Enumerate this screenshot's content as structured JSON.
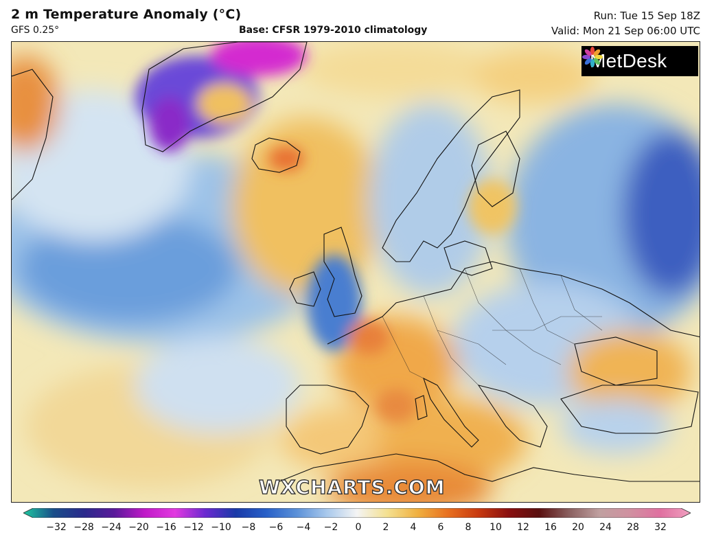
{
  "header": {
    "title": "2 m Temperature Anomaly (°C)",
    "model": "GFS 0.25°",
    "base": "Base: CFSR 1979-2010 climatology",
    "run": "Run: Tue 15 Sep 18Z",
    "valid": "Valid: Mon 21 Sep 06:00 UTC"
  },
  "logo": {
    "text": "MetDesk",
    "icon": "flower-logo-icon"
  },
  "watermark": "WXCHARTS.COM",
  "legend": {
    "ticks": [
      "−32",
      "−28",
      "−24",
      "−20",
      "−16",
      "−12",
      "−10",
      "−8",
      "−6",
      "−4",
      "−2",
      "0",
      "2",
      "4",
      "6",
      "8",
      "10",
      "12",
      "16",
      "20",
      "24",
      "28",
      "32"
    ],
    "colors": [
      "#1fc8a0",
      "#1a4e8a",
      "#2a2a8c",
      "#5a1a9a",
      "#c01ac8",
      "#e23ae0",
      "#6a2ad0",
      "#1a3aa8",
      "#2860c8",
      "#5a90d8",
      "#a8c8ec",
      "#f4f4f4",
      "#f4e090",
      "#f0b040",
      "#e87020",
      "#c83a10",
      "#8a1010",
      "#5a1010",
      "#8a6060",
      "#c0a0a0",
      "#d090a0",
      "#e070a0",
      "#f0a0c0"
    ]
  },
  "palette": {
    "cold_strong": "#2a3aa8",
    "cold": "#5a90d8",
    "cool": "#b8d4ee",
    "neutral": "#eef0f2",
    "warm_light": "#f4e4a0",
    "warm": "#f0b850",
    "hot": "#e87a30",
    "extreme_cold": "#c01ac8"
  }
}
